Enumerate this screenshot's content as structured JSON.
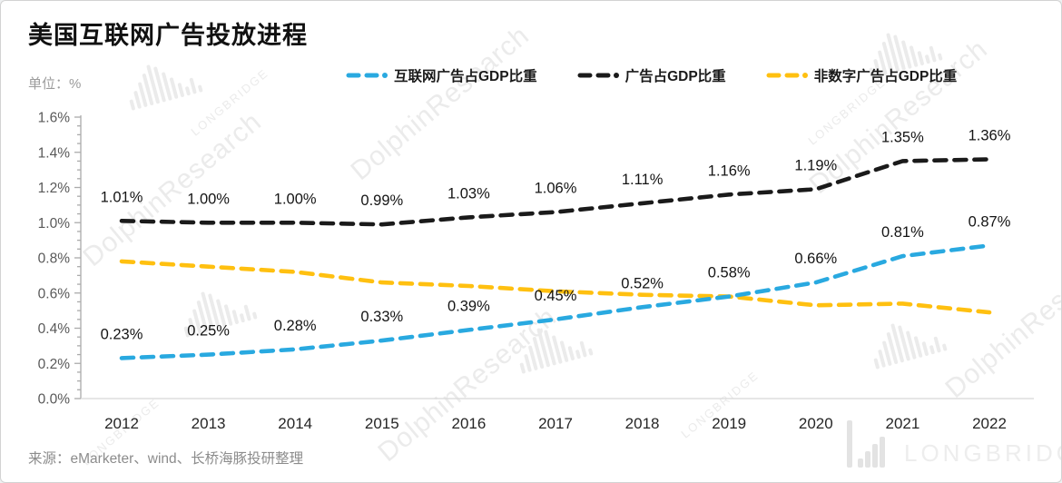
{
  "header": {
    "title": "美国互联网广告投放进程",
    "unit_label": "单位：%"
  },
  "legend": [
    {
      "label": "互联网广告占GDP比重",
      "color": "#29A9E0"
    },
    {
      "label": "广告占GDP比重",
      "color": "#1A1A1A"
    },
    {
      "label": "非数字广告占GDP比重",
      "color": "#FFC010"
    }
  ],
  "source_note": "来源：eMarketer、wind、长桥海豚投研整理",
  "watermark": {
    "brand": "LONGBRIDGE",
    "research": "DolphinResearch"
  },
  "chart_data": {
    "type": "line",
    "title": "美国互联网广告投放进程",
    "unit": "%",
    "x": [
      2012,
      2013,
      2014,
      2015,
      2016,
      2017,
      2018,
      2019,
      2020,
      2021,
      2022
    ],
    "series": [
      {
        "key": "internet",
        "name": "互联网广告占GDP比重",
        "color": "#29A9E0",
        "dash": true,
        "labels_shown": true,
        "values": [
          0.23,
          0.25,
          0.28,
          0.33,
          0.39,
          0.45,
          0.52,
          0.58,
          0.66,
          0.81,
          0.87
        ]
      },
      {
        "key": "total",
        "name": "广告占GDP比重",
        "color": "#1A1A1A",
        "dash": true,
        "labels_shown": true,
        "values": [
          1.01,
          1.0,
          1.0,
          0.99,
          1.03,
          1.06,
          1.11,
          1.16,
          1.19,
          1.35,
          1.36
        ]
      },
      {
        "key": "nondigital",
        "name": "非数字广告占GDP比重",
        "color": "#FFC010",
        "dash": true,
        "labels_shown": false,
        "values": [
          0.78,
          0.75,
          0.72,
          0.66,
          0.64,
          0.61,
          0.59,
          0.58,
          0.53,
          0.54,
          0.49
        ]
      }
    ],
    "ylim": [
      0,
      1.6
    ],
    "ytick_step": 0.2,
    "ytick_labels": [
      "0.0%",
      "0.2%",
      "0.4%",
      "0.6%",
      "0.8%",
      "1.0%",
      "1.2%",
      "1.4%",
      "1.6%"
    ],
    "grid": false,
    "legend_position": "top"
  }
}
